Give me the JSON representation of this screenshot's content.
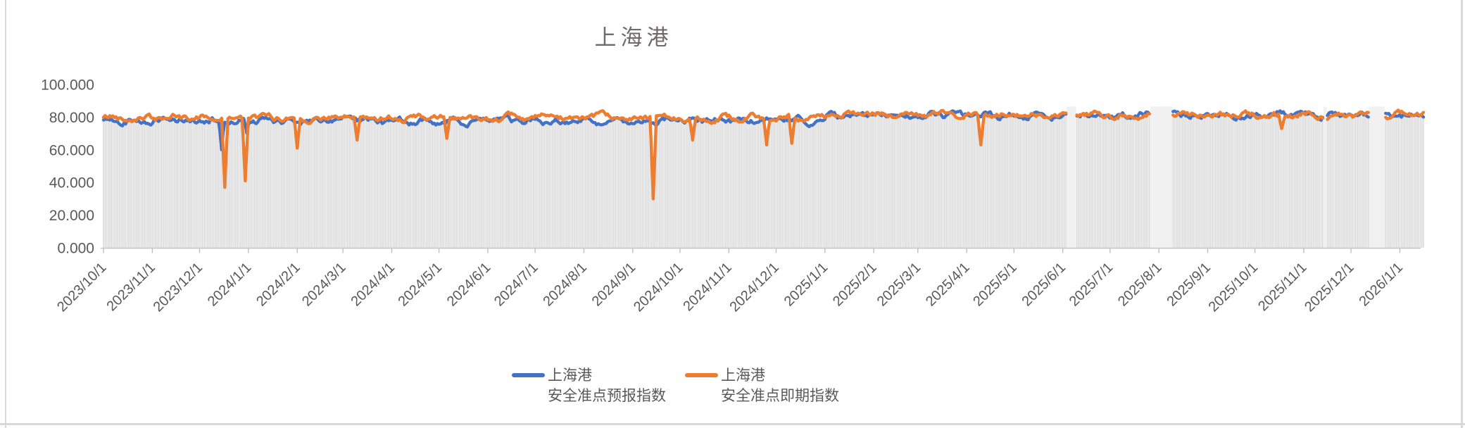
{
  "chart_title": "上海港",
  "chart_data": {
    "type": "line",
    "title": "上海港",
    "x_axis": {
      "start_date": "2023/10/1",
      "data_end_date": "2026/1/16",
      "tick_labels": [
        "2023/10/1",
        "2023/11/1",
        "2023/12/1",
        "2024/1/1",
        "2024/2/1",
        "2024/3/1",
        "2024/4/1",
        "2024/5/1",
        "2024/6/1",
        "2024/7/1",
        "2024/8/1",
        "2024/9/1",
        "2024/10/1",
        "2024/11/1",
        "2024/12/1",
        "2025/1/1",
        "2025/2/1",
        "2025/3/1",
        "2025/4/1",
        "2025/5/1",
        "2025/6/1",
        "2025/7/1",
        "2025/8/1",
        "2025/9/1",
        "2025/10/1",
        "2025/11/1",
        "2025/12/1",
        "2026/1/1"
      ],
      "tick_day_offsets": [
        0,
        31,
        61,
        92,
        123,
        152,
        183,
        213,
        244,
        274,
        305,
        336,
        366,
        397,
        427,
        458,
        489,
        517,
        548,
        578,
        609,
        639,
        670,
        701,
        731,
        762,
        792,
        823
      ],
      "unit": "day"
    },
    "y_axis": {
      "tick_labels": [
        "100.000",
        "80.000",
        "60.000",
        "40.000",
        "20.000",
        "0.000"
      ],
      "tick_values": [
        100,
        80,
        60,
        40,
        20,
        0
      ],
      "range": [
        0,
        100
      ],
      "grid": false
    },
    "series": [
      {
        "id": "forecast",
        "name": "上海港 安全准点预报指数",
        "color": "#4472C4",
        "typical_value": 78,
        "late_typical_value": 81
      },
      {
        "id": "spot",
        "name": "上海港 安全准点即期指数",
        "color": "#ED7D31",
        "typical_value": 80,
        "late_typical_value": 81.5
      }
    ],
    "series_spec": {
      "days_total": 839,
      "daily_points": true,
      "noise_amplitude": 2.4,
      "baseline_shift_day": 458,
      "description": "Two daily index lines oscillating around 76-84 from 2023/10/1 to 2026/1/16; blue forecast slightly below orange spot until 2025, then overlapping."
    },
    "anomalies": [
      {
        "day": 75,
        "date": "2023/12/15",
        "series": "forecast",
        "value": 60
      },
      {
        "day": 77,
        "date": "2023/12/17",
        "series": "spot",
        "value": 37
      },
      {
        "day": 90,
        "date": "2023/12/30",
        "series": "spot",
        "value": 41
      },
      {
        "day": 91,
        "date": "2023/12/31",
        "series": "forecast",
        "value": 70
      },
      {
        "day": 123,
        "date": "2024/2/1",
        "series": "spot",
        "value": 61
      },
      {
        "day": 161,
        "date": "2024/3/10",
        "series": "spot",
        "value": 66
      },
      {
        "day": 218,
        "date": "2024/5/6",
        "series": "spot",
        "value": 67
      },
      {
        "day": 349,
        "date": "2024/9/14",
        "series": "spot",
        "value": 30
      },
      {
        "day": 374,
        "date": "2024/10/9",
        "series": "spot",
        "value": 66
      },
      {
        "day": 421,
        "date": "2024/11/25",
        "series": "spot",
        "value": 63
      },
      {
        "day": 437,
        "date": "2024/12/11",
        "series": "spot",
        "value": 64
      },
      {
        "day": 557,
        "date": "2025/4/10",
        "series": "spot",
        "value": 63
      },
      {
        "day": 748,
        "date": "2025/10/19",
        "series": "spot",
        "value": 73
      }
    ],
    "gaps": [
      {
        "from_day": 612,
        "to_day": 617,
        "from_date": "2025/6/4",
        "to_date": "2025/6/9"
      },
      {
        "from_day": 665,
        "to_day": 678,
        "from_date": "2025/7/27",
        "to_date": "2025/8/9"
      },
      {
        "from_day": 775,
        "to_day": 776,
        "from_date": "2025/11/13",
        "to_date": "2025/11/14"
      },
      {
        "from_day": 804,
        "to_day": 813,
        "from_date": "2025/12/12",
        "to_date": "2025/12/21"
      }
    ],
    "background_bars": {
      "present": true,
      "per_day": true,
      "color": "#DBDADA"
    },
    "legend_position": "bottom"
  },
  "legend": {
    "items": [
      {
        "line1": "上海港",
        "line2": "安全准点预报指数",
        "color": "#4472C4"
      },
      {
        "line1": "上海港",
        "line2": "安全准点即期指数",
        "color": "#ED7D31"
      }
    ]
  },
  "colors": {
    "forecast_blue": "#4472C4",
    "spot_orange": "#ED7D31",
    "bars": "#DBDADA",
    "gap_fill": "#F2F1F1",
    "axis_line": "#C9C7C7",
    "tick_mark": "#BFBFBF",
    "tick_text": "#595959",
    "title_text": "#6E6B6B",
    "border": "#D9D9D9",
    "background": "#FFFFFF"
  }
}
